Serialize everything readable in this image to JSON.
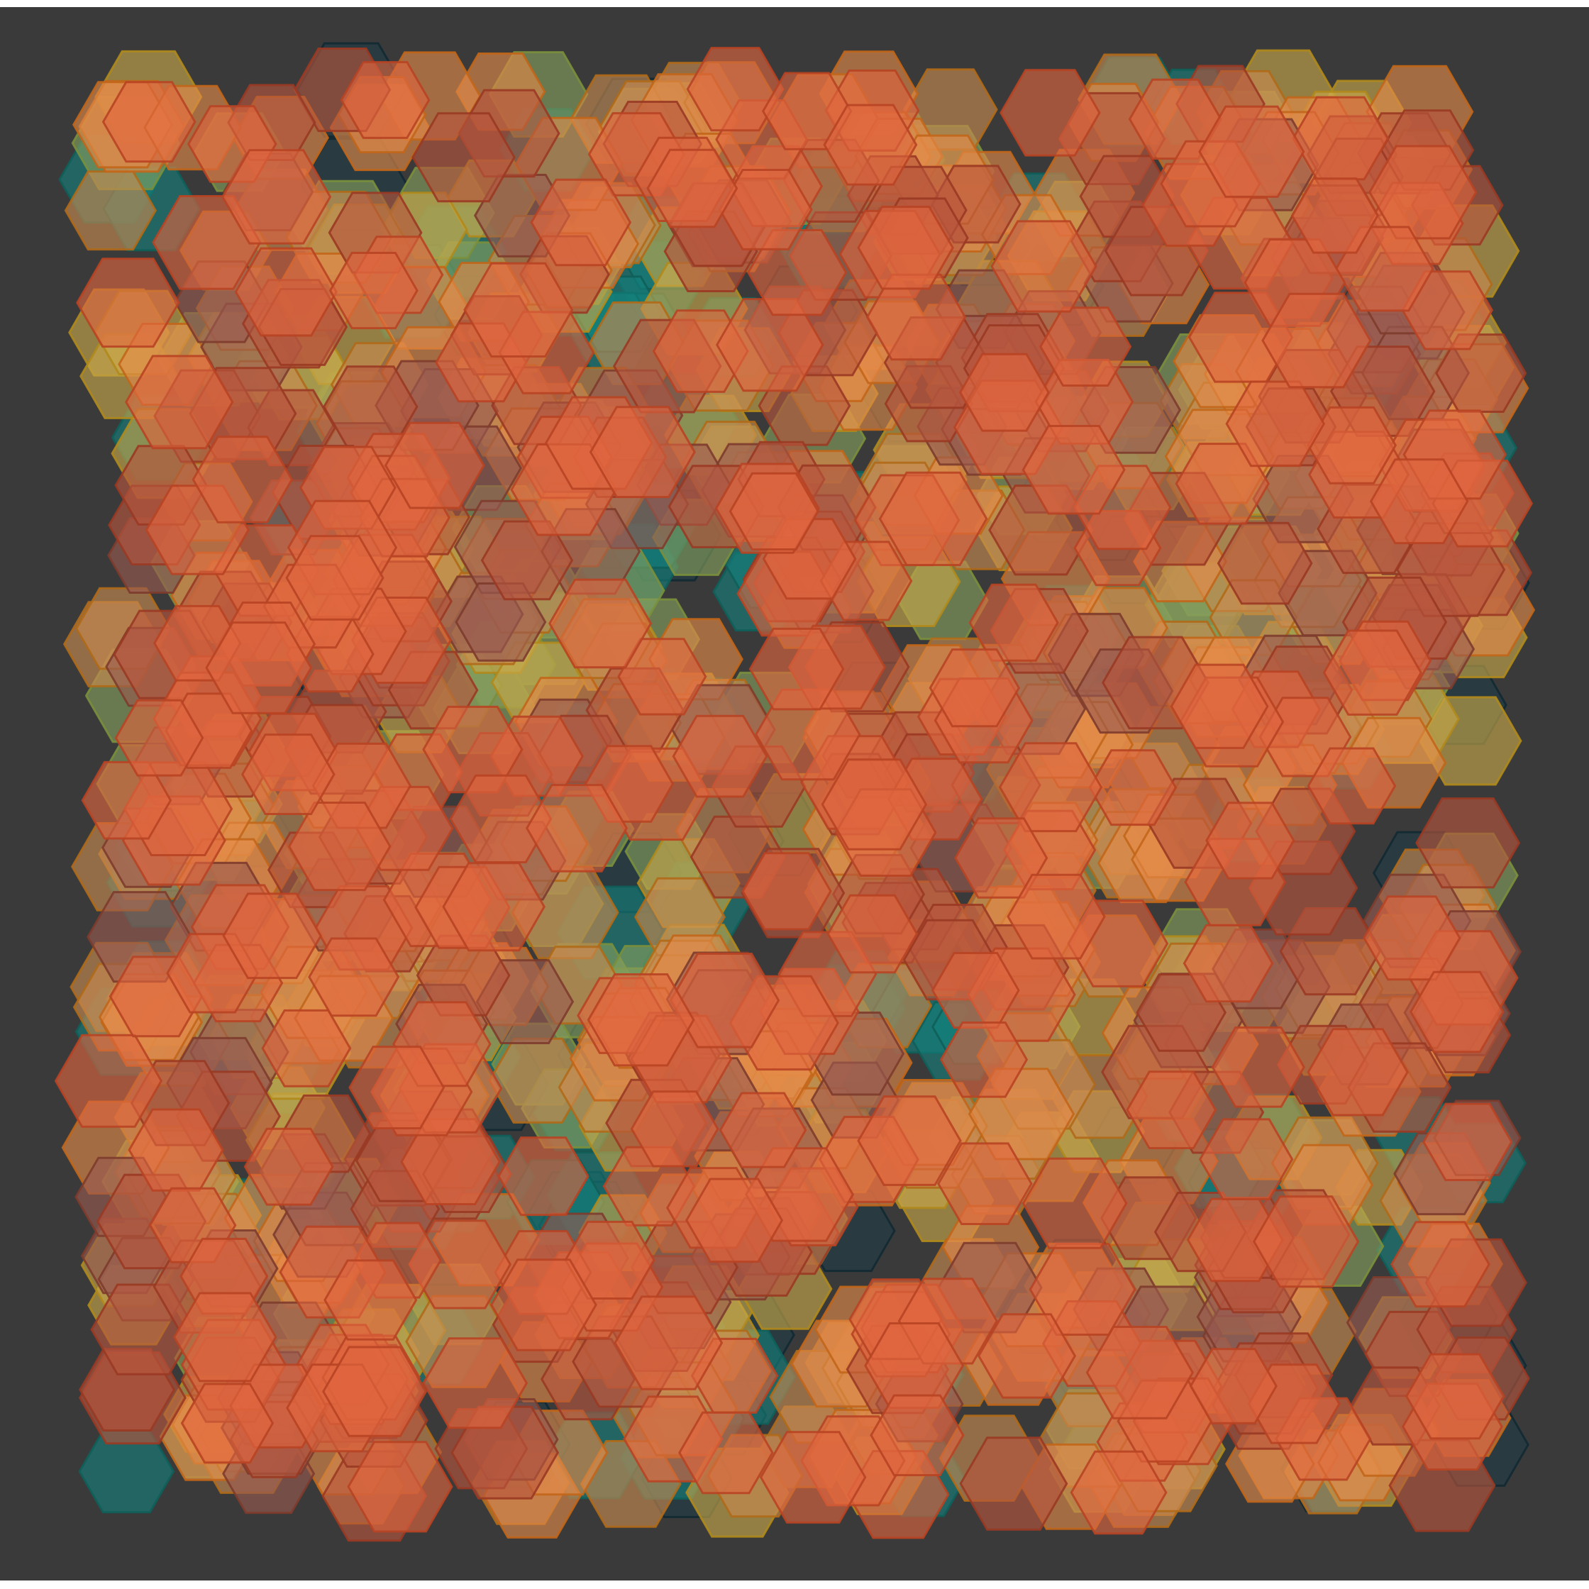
{
  "artwork": {
    "subject": "generative-hexagon-mosaic",
    "background_color": "#3a3a3a",
    "palette": [
      {
        "name": "dark-slate",
        "fill": "#1f3a46",
        "stroke": "#122a33"
      },
      {
        "name": "teal",
        "fill": "#14807a",
        "stroke": "#0f5f5a"
      },
      {
        "name": "sage",
        "fill": "#86a05e",
        "stroke": "#7a8f3c"
      },
      {
        "name": "mustard",
        "fill": "#caa94a",
        "stroke": "#b08a1c"
      },
      {
        "name": "tan",
        "fill": "#c98b50",
        "stroke": "#b06a18"
      },
      {
        "name": "orange",
        "fill": "#e58a48",
        "stroke": "#c2661a"
      },
      {
        "name": "coral",
        "fill": "#e0653f",
        "stroke": "#b84424"
      },
      {
        "name": "brick",
        "fill": "#b8553e",
        "stroke": "#9a3a24"
      },
      {
        "name": "mauve",
        "fill": "#9a5a50",
        "stroke": "#7e3c2c"
      }
    ],
    "fill_opacity": 0.62,
    "shape": "pointy-side-hexagon"
  }
}
